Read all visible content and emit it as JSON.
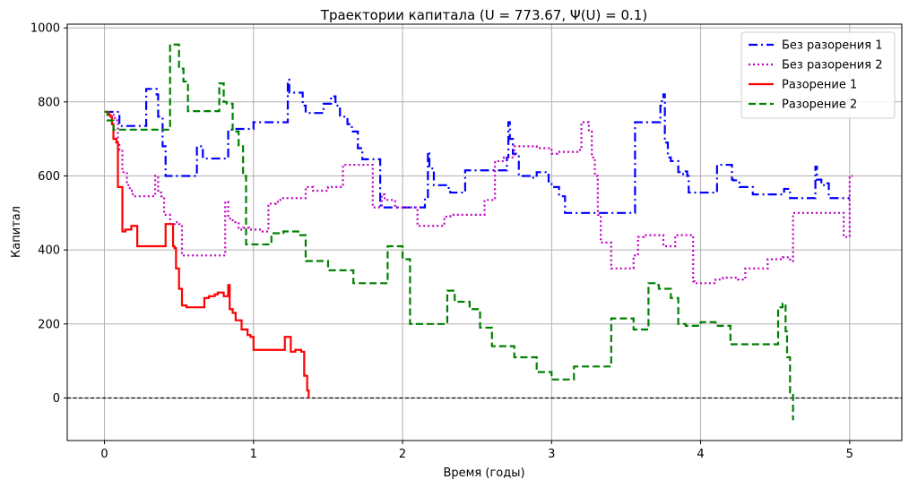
{
  "chart_data": {
    "type": "line",
    "step": true,
    "title": "Траектории капитала (U = 773.67, Ψ(U) = 0.1)",
    "xlabel": "Время (годы)",
    "ylabel": "Капитал",
    "xlim": [
      -0.25,
      5.35
    ],
    "ylim": [
      -115,
      1010
    ],
    "xticks": [
      0,
      1,
      2,
      3,
      4,
      5
    ],
    "yticks": [
      0,
      200,
      400,
      600,
      800,
      1000
    ],
    "grid": true,
    "legend_position": "top-right",
    "hline": {
      "y": 0,
      "color": "#000000",
      "style": "dashed"
    },
    "series": [
      {
        "name": "Без разорения 1",
        "color": "#0000ff",
        "style": "dashdot",
        "x": [
          0,
          0.1,
          0.28,
          0.35,
          0.36,
          0.39,
          0.41,
          0.61,
          0.62,
          0.66,
          0.82,
          0.83,
          0.86,
          1.0,
          1.22,
          1.23,
          1.24,
          1.25,
          1.33,
          1.35,
          1.45,
          1.47,
          1.52,
          1.55,
          1.58,
          1.63,
          1.66,
          1.68,
          1.7,
          1.73,
          1.85,
          1.86,
          2.15,
          2.16,
          2.17,
          2.18,
          2.21,
          2.31,
          2.32,
          2.41,
          2.42,
          2.55,
          2.69,
          2.7,
          2.71,
          2.72,
          2.74,
          2.78,
          2.87,
          2.88,
          2.9,
          2.98,
          3.0,
          3.05,
          3.09,
          3.55,
          3.56,
          3.72,
          3.73,
          3.74,
          3.75,
          3.76,
          3.78,
          3.8,
          3.85,
          3.86,
          3.9,
          3.91,
          3.92,
          4.1,
          4.11,
          4.2,
          4.21,
          4.22,
          4.26,
          4.31,
          4.35,
          4.55,
          4.56,
          4.6,
          4.75,
          4.77,
          4.78,
          4.81,
          4.85,
          4.86,
          4.95,
          5.0
        ],
        "y": [
          773,
          735,
          835,
          820,
          760,
          680,
          600,
          600,
          680,
          647,
          647,
          725,
          727,
          745,
          745,
          860,
          825,
          825,
          790,
          770,
          770,
          795,
          815,
          790,
          760,
          740,
          720,
          720,
          675,
          645,
          520,
          515,
          540,
          540,
          665,
          620,
          575,
          560,
          555,
          555,
          615,
          615,
          615,
          650,
          745,
          700,
          660,
          600,
          595,
          595,
          610,
          585,
          570,
          545,
          500,
          500,
          745,
          745,
          790,
          810,
          820,
          690,
          650,
          640,
          610,
          605,
          612,
          600,
          555,
          555,
          630,
          630,
          590,
          588,
          570,
          570,
          550,
          550,
          565,
          540,
          540,
          625,
          590,
          575,
          580,
          540,
          540,
          540
        ]
      },
      {
        "name": "Без разорения 2",
        "color": "#bf00bf",
        "style": "dotted",
        "x": [
          0.01,
          0.03,
          0.05,
          0.07,
          0.09,
          0.1,
          0.12,
          0.15,
          0.17,
          0.19,
          0.33,
          0.34,
          0.36,
          0.38,
          0.4,
          0.44,
          0.47,
          0.5,
          0.52,
          0.8,
          0.81,
          0.83,
          0.86,
          0.9,
          0.93,
          0.97,
          1.06,
          1.1,
          1.15,
          1.18,
          1.3,
          1.35,
          1.4,
          1.5,
          1.58,
          1.6,
          1.8,
          1.82,
          1.86,
          1.88,
          1.95,
          2.1,
          2.12,
          2.28,
          2.32,
          2.55,
          2.56,
          2.62,
          2.68,
          2.75,
          2.9,
          3.0,
          3.04,
          3.18,
          3.19,
          3.2,
          3.22,
          3.25,
          3.27,
          3.29,
          3.31,
          3.33,
          3.4,
          3.53,
          3.55,
          3.58,
          3.62,
          3.75,
          3.78,
          3.8,
          3.83,
          3.95,
          3.96,
          4.1,
          4.15,
          4.25,
          4.3,
          4.45,
          4.55,
          4.6,
          4.61,
          4.62,
          4.96,
          4.98,
          5.0,
          5.02
        ],
        "y": [
          773,
          760,
          765,
          750,
          690,
          670,
          610,
          575,
          560,
          545,
          545,
          600,
          560,
          545,
          495,
          470,
          475,
          470,
          385,
          385,
          530,
          485,
          475,
          455,
          460,
          455,
          450,
          525,
          530,
          540,
          540,
          570,
          560,
          570,
          570,
          630,
          515,
          515,
          550,
          535,
          515,
          465,
          465,
          490,
          495,
          535,
          535,
          640,
          650,
          680,
          675,
          660,
          665,
          670,
          670,
          745,
          745,
          720,
          650,
          600,
          495,
          420,
          350,
          350,
          385,
          435,
          440,
          410,
          410,
          410,
          440,
          315,
          310,
          320,
          325,
          320,
          350,
          375,
          380,
          370,
          370,
          500,
          435,
          435,
          600,
          600
        ]
      },
      {
        "name": "Разорение 1",
        "color": "#ff0000",
        "style": "solid",
        "x": [
          0,
          0.03,
          0.04,
          0.05,
          0.06,
          0.08,
          0.09,
          0.1,
          0.12,
          0.14,
          0.18,
          0.2,
          0.22,
          0.4,
          0.41,
          0.44,
          0.46,
          0.47,
          0.48,
          0.5,
          0.52,
          0.55,
          0.67,
          0.7,
          0.74,
          0.76,
          0.8,
          0.83,
          0.84,
          0.86,
          0.88,
          0.92,
          0.96,
          0.98,
          1.0,
          1.2,
          1.21,
          1.25,
          1.28,
          1.32,
          1.34,
          1.36,
          1.37
        ],
        "y": [
          773,
          765,
          760,
          740,
          700,
          690,
          570,
          570,
          450,
          455,
          465,
          465,
          410,
          410,
          470,
          470,
          410,
          405,
          350,
          295,
          250,
          245,
          270,
          275,
          280,
          285,
          275,
          305,
          240,
          230,
          210,
          185,
          170,
          165,
          130,
          130,
          165,
          125,
          130,
          125,
          60,
          20,
          0
        ]
      },
      {
        "name": "Разорение 2",
        "color": "#008000",
        "style": "dashed",
        "x": [
          0,
          0.02,
          0.06,
          0.43,
          0.44,
          0.46,
          0.5,
          0.53,
          0.56,
          0.75,
          0.77,
          0.8,
          0.82,
          0.86,
          0.88,
          0.9,
          0.93,
          0.95,
          1.05,
          1.12,
          1.2,
          1.3,
          1.35,
          1.5,
          1.6,
          1.67,
          1.9,
          1.92,
          2.0,
          2.05,
          2.25,
          2.3,
          2.35,
          2.45,
          2.52,
          2.6,
          2.7,
          2.75,
          2.9,
          3.0,
          3.05,
          3.15,
          3.35,
          3.4,
          3.55,
          3.63,
          3.65,
          3.7,
          3.72,
          3.8,
          3.85,
          3.9,
          4.0,
          4.1,
          4.2,
          4.4,
          4.52,
          4.55,
          4.57,
          4.58,
          4.6,
          4.62
        ],
        "y": [
          773,
          750,
          725,
          725,
          955,
          955,
          890,
          855,
          775,
          775,
          850,
          800,
          795,
          720,
          720,
          680,
          600,
          415,
          415,
          445,
          450,
          440,
          370,
          345,
          345,
          310,
          410,
          410,
          375,
          200,
          200,
          290,
          260,
          240,
          190,
          140,
          140,
          110,
          70,
          50,
          50,
          85,
          85,
          215,
          185,
          185,
          310,
          305,
          295,
          270,
          200,
          195,
          205,
          195,
          145,
          145,
          245,
          255,
          180,
          110,
          15,
          -60
        ]
      }
    ]
  }
}
